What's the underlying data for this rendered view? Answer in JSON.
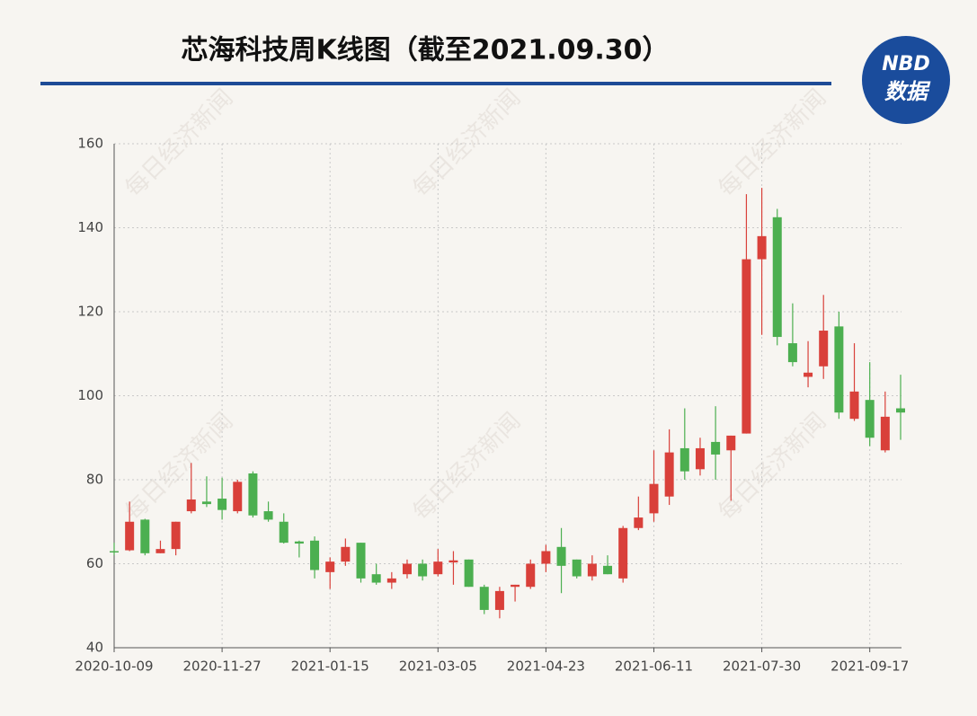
{
  "chart_data": {
    "type": "candlestick",
    "title": "芯海科技周K线图（截至2021.09.30）",
    "logo_top": "NBD",
    "logo_bottom": "数据",
    "watermark": "每日经济新闻",
    "categories": [
      "2020-10-09",
      null,
      null,
      null,
      null,
      null,
      null,
      "2020-11-27",
      null,
      null,
      null,
      null,
      null,
      null,
      "2021-01-15",
      null,
      null,
      null,
      null,
      null,
      null,
      "2021-03-05",
      null,
      null,
      null,
      null,
      null,
      null,
      "2021-04-23",
      null,
      null,
      null,
      null,
      null,
      null,
      "2021-06-11",
      null,
      null,
      null,
      null,
      null,
      null,
      "2021-07-30",
      null,
      null,
      null,
      null,
      null,
      null,
      "2021-09-17",
      null,
      null
    ],
    "open": [
      63,
      63.2,
      70.5,
      62.5,
      63.5,
      72.5,
      74.8,
      75.5,
      72.5,
      81.5,
      72.5,
      70,
      65.3,
      65.5,
      58,
      60.5,
      65,
      57.5,
      55.5,
      57.5,
      60,
      57.5,
      60.3,
      61,
      54.5,
      49,
      54.5,
      54.5,
      60,
      64,
      61,
      57,
      59.5,
      56.5,
      68.5,
      72,
      76,
      87.5,
      82.5,
      89,
      87,
      91,
      132.5,
      142.5,
      112.5,
      104.5,
      107,
      116.5,
      94.5,
      99,
      87,
      97
    ],
    "high": [
      65,
      74.8,
      70.7,
      65.5,
      70,
      84,
      80.8,
      80.5,
      80,
      82,
      74.8,
      72,
      65.5,
      66.5,
      61.5,
      66,
      65,
      60,
      58,
      61,
      61,
      63.5,
      63,
      61,
      55,
      54.5,
      55,
      61,
      64.5,
      68.5,
      61,
      62,
      62,
      69,
      76,
      87,
      92,
      97,
      90,
      97.5,
      90.5,
      148,
      149.5,
      144.5,
      122,
      113,
      124,
      120,
      112.5,
      108,
      101,
      105
    ],
    "low": [
      62,
      63,
      62,
      62.5,
      62,
      72,
      73.5,
      70.5,
      72,
      71,
      70,
      64.8,
      61.5,
      56.5,
      54,
      59.5,
      55.5,
      55,
      54,
      56.5,
      56,
      57,
      55,
      54.5,
      48,
      47,
      51,
      54,
      58,
      53,
      56.5,
      56,
      57.5,
      55.5,
      68,
      70,
      74,
      80,
      81,
      80,
      75,
      91,
      114.5,
      112,
      107,
      102,
      104,
      94.5,
      94,
      88,
      86.5,
      89.5
    ],
    "close": [
      62.7,
      70,
      62.5,
      63.5,
      70,
      75.3,
      74.2,
      72.8,
      79.5,
      71.5,
      70.5,
      65,
      64.8,
      58.5,
      60.5,
      64,
      56.5,
      55.5,
      56.5,
      60,
      57,
      60.5,
      60.8,
      54.5,
      49,
      53.5,
      55,
      60,
      63,
      59.5,
      57,
      60,
      57.5,
      68.5,
      71,
      79,
      86.5,
      82,
      87.5,
      86,
      90.5,
      132.5,
      138,
      114,
      108,
      105.5,
      115.5,
      96,
      101,
      90,
      95,
      96
    ],
    "up_color": "#d9403a",
    "down_color": "#4caf50",
    "ylim": [
      40,
      160
    ],
    "yticks": [
      40,
      60,
      80,
      100,
      120,
      140,
      160
    ],
    "grid": true
  }
}
